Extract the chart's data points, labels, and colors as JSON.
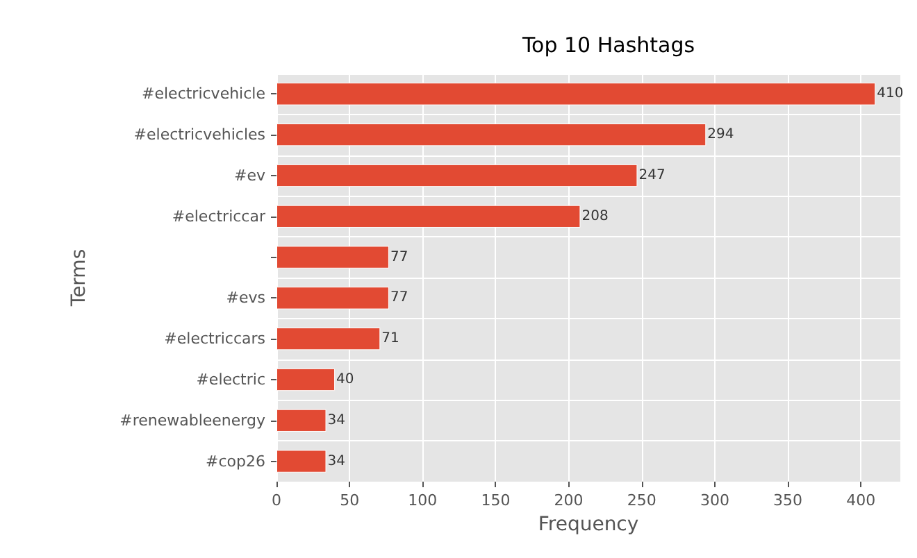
{
  "chart_data": {
    "type": "bar",
    "orientation": "horizontal",
    "title": "Top 10 Hashtags",
    "xlabel": "Frequency",
    "ylabel": "Terms",
    "categories": [
      "#electricvehicle",
      "#electricvehicles",
      "#ev",
      "#electriccar",
      null,
      "#evs",
      "#electriccars",
      "#electric",
      "#renewableenergy",
      "#cop26"
    ],
    "values": [
      410,
      294,
      247,
      208,
      77,
      77,
      71,
      40,
      34,
      34
    ],
    "color": "#e24a33",
    "data_labels": true,
    "grid": true,
    "xlim": [
      0,
      427
    ],
    "xticks": [
      0,
      50,
      100,
      150,
      200,
      250,
      300,
      350,
      400
    ]
  }
}
